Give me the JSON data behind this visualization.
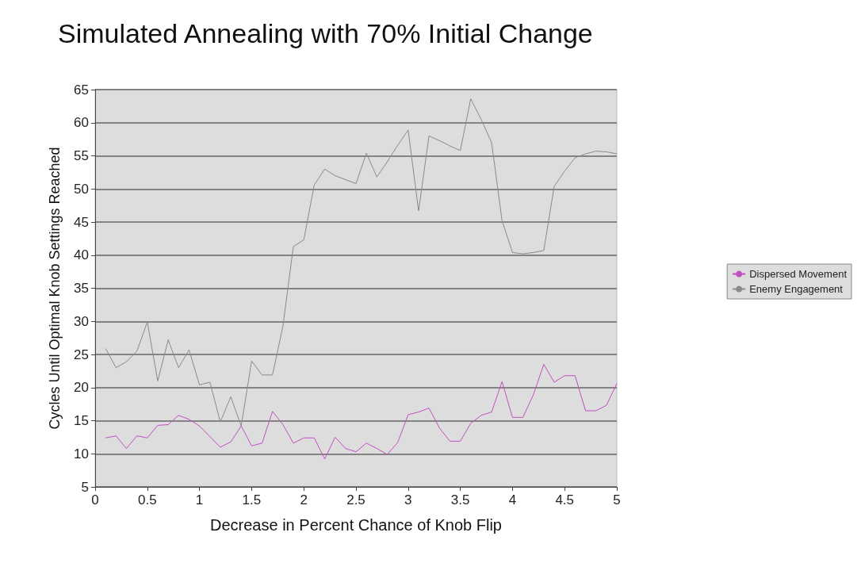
{
  "chart_data": {
    "type": "line",
    "title": "Simulated Annealing with 70% Initial Change",
    "xlabel": "Decrease in Percent Chance of Knob Flip",
    "ylabel": "Cycles Until Optimal Knob Settings Reached",
    "x": [
      0.1,
      0.2,
      0.3,
      0.4,
      0.5,
      0.6,
      0.7,
      0.8,
      0.9,
      1.0,
      1.1,
      1.2,
      1.3,
      1.4,
      1.5,
      1.6,
      1.7,
      1.8,
      1.9,
      2.0,
      2.1,
      2.2,
      2.3,
      2.4,
      2.5,
      2.6,
      2.7,
      2.8,
      2.9,
      3.0,
      3.1,
      3.2,
      3.3,
      3.4,
      3.5,
      3.6,
      3.7,
      3.8,
      3.9,
      4.0,
      4.1,
      4.2,
      4.3,
      4.4,
      4.5,
      4.6,
      4.7,
      4.8,
      4.9,
      5.0
    ],
    "series": [
      {
        "name": "Dispersed Movement",
        "color": "#c050c0",
        "values": [
          12.4,
          12.7,
          10.8,
          12.7,
          12.4,
          14.3,
          14.4,
          15.8,
          15.2,
          14.2,
          12.6,
          11.0,
          11.8,
          14.2,
          11.2,
          11.6,
          16.4,
          14.4,
          11.6,
          12.4,
          12.4,
          9.2,
          12.5,
          10.8,
          10.3,
          11.6,
          10.8,
          9.9,
          11.7,
          15.9,
          16.3,
          16.9,
          13.9,
          11.9,
          11.9,
          14.6,
          15.8,
          16.3,
          20.9,
          15.5,
          15.5,
          18.9,
          23.5,
          20.8,
          21.8,
          21.8,
          16.5,
          16.5,
          17.3,
          20.6
        ]
      },
      {
        "name": "Enemy Engagement",
        "color": "#8a8a8a",
        "values": [
          25.9,
          23.0,
          23.9,
          25.5,
          29.9,
          21.0,
          27.2,
          23.0,
          25.7,
          20.4,
          20.8,
          14.8,
          18.6,
          14.2,
          24.0,
          21.9,
          21.9,
          29.3,
          41.3,
          42.3,
          50.6,
          53.0,
          52.0,
          51.4,
          50.8,
          55.4,
          51.8,
          54.1,
          56.6,
          58.9,
          46.7,
          58.0,
          57.3,
          56.5,
          55.8,
          63.6,
          60.5,
          57.0,
          45.2,
          40.4,
          40.2,
          40.4,
          40.7,
          50.4,
          52.7,
          54.7,
          55.3,
          55.7,
          55.6,
          55.3
        ]
      }
    ],
    "xlim": [
      0,
      5
    ],
    "xticks": [
      0,
      0.5,
      1,
      1.5,
      2,
      2.5,
      3,
      3.5,
      4,
      4.5,
      5
    ],
    "ylim": [
      5,
      65
    ],
    "yticks": [
      5,
      10,
      15,
      20,
      25,
      30,
      35,
      40,
      45,
      50,
      55,
      60,
      65
    ],
    "grid": "y",
    "legend": "right",
    "marker": "none",
    "line_style": "solid"
  }
}
